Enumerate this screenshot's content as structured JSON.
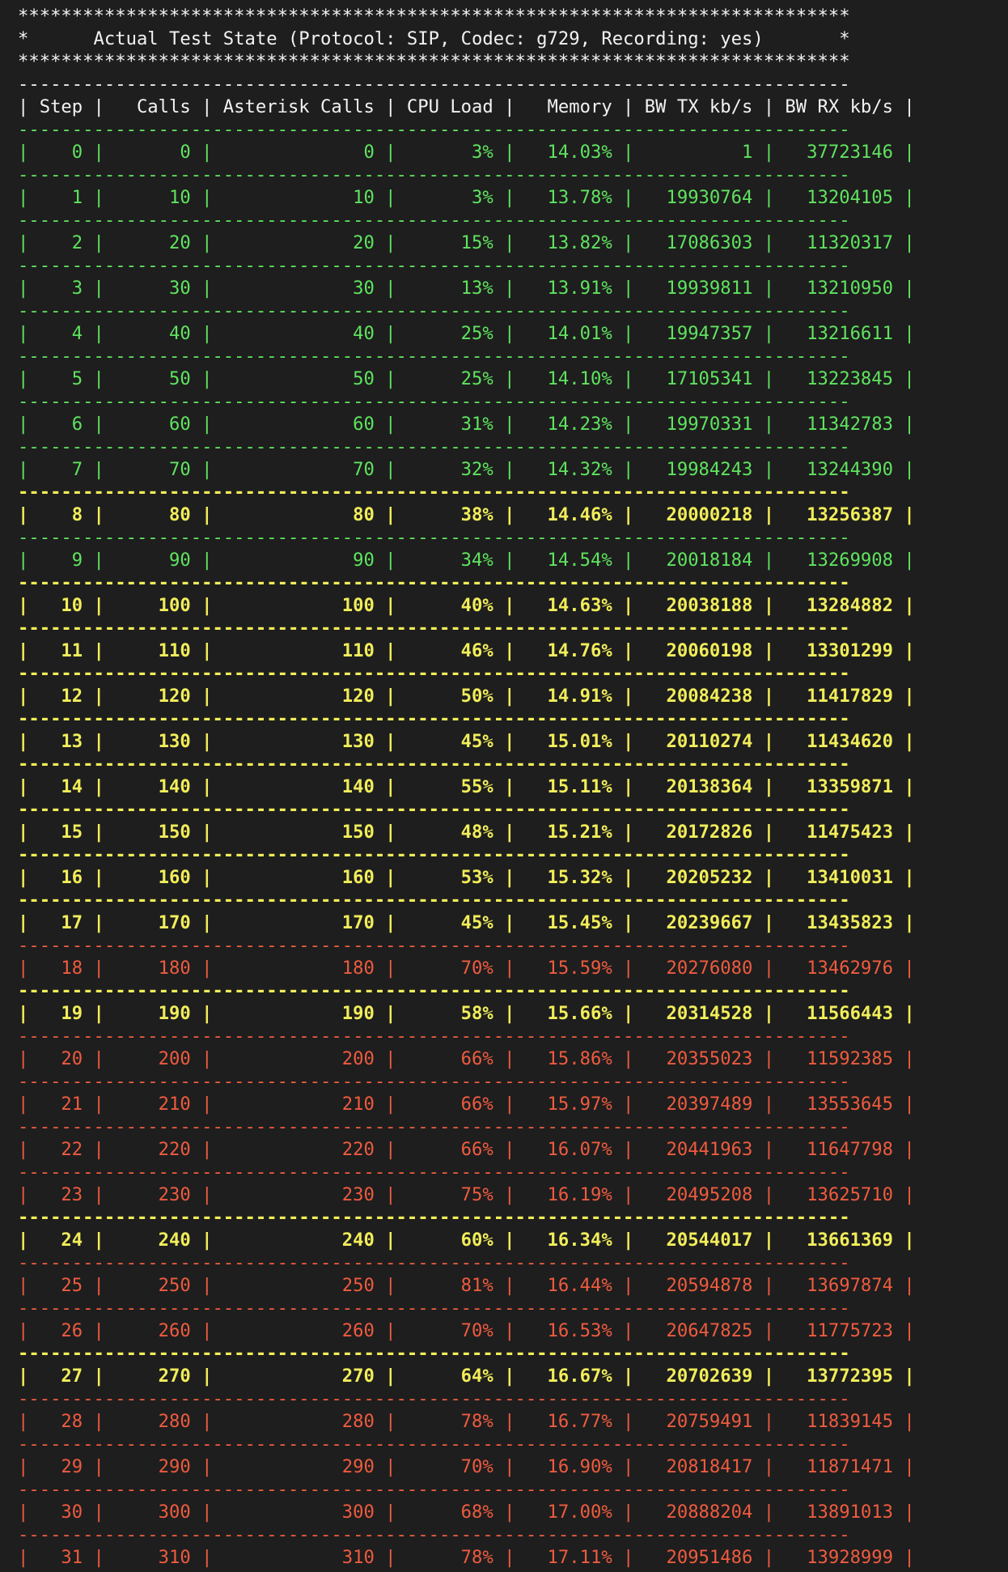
{
  "header": {
    "stars": "*****************************************************************************",
    "title": "Actual Test State (Protocol: SIP, Codec: g729, Recording: yes)"
  },
  "table": {
    "columns": [
      "Step",
      "Calls",
      "Asterisk Calls",
      "CPU Load",
      "Memory",
      "BW TX kb/s",
      "BW RX kb/s"
    ],
    "rows": [
      {
        "step": "0",
        "calls": "0",
        "asterisk": "0",
        "cpu": "3%",
        "mem": "14.03%",
        "tx": "1",
        "rx": "37723146",
        "color": "green"
      },
      {
        "step": "1",
        "calls": "10",
        "asterisk": "10",
        "cpu": "3%",
        "mem": "13.78%",
        "tx": "19930764",
        "rx": "13204105",
        "color": "green"
      },
      {
        "step": "2",
        "calls": "20",
        "asterisk": "20",
        "cpu": "15%",
        "mem": "13.82%",
        "tx": "17086303",
        "rx": "11320317",
        "color": "green"
      },
      {
        "step": "3",
        "calls": "30",
        "asterisk": "30",
        "cpu": "13%",
        "mem": "13.91%",
        "tx": "19939811",
        "rx": "13210950",
        "color": "green"
      },
      {
        "step": "4",
        "calls": "40",
        "asterisk": "40",
        "cpu": "25%",
        "mem": "14.01%",
        "tx": "19947357",
        "rx": "13216611",
        "color": "green"
      },
      {
        "step": "5",
        "calls": "50",
        "asterisk": "50",
        "cpu": "25%",
        "mem": "14.10%",
        "tx": "17105341",
        "rx": "13223845",
        "color": "green"
      },
      {
        "step": "6",
        "calls": "60",
        "asterisk": "60",
        "cpu": "31%",
        "mem": "14.23%",
        "tx": "19970331",
        "rx": "11342783",
        "color": "green"
      },
      {
        "step": "7",
        "calls": "70",
        "asterisk": "70",
        "cpu": "32%",
        "mem": "14.32%",
        "tx": "19984243",
        "rx": "13244390",
        "color": "green"
      },
      {
        "step": "8",
        "calls": "80",
        "asterisk": "80",
        "cpu": "38%",
        "mem": "14.46%",
        "tx": "20000218",
        "rx": "13256387",
        "color": "yellow"
      },
      {
        "step": "9",
        "calls": "90",
        "asterisk": "90",
        "cpu": "34%",
        "mem": "14.54%",
        "tx": "20018184",
        "rx": "13269908",
        "color": "green"
      },
      {
        "step": "10",
        "calls": "100",
        "asterisk": "100",
        "cpu": "40%",
        "mem": "14.63%",
        "tx": "20038188",
        "rx": "13284882",
        "color": "yellow"
      },
      {
        "step": "11",
        "calls": "110",
        "asterisk": "110",
        "cpu": "46%",
        "mem": "14.76%",
        "tx": "20060198",
        "rx": "13301299",
        "color": "yellow"
      },
      {
        "step": "12",
        "calls": "120",
        "asterisk": "120",
        "cpu": "50%",
        "mem": "14.91%",
        "tx": "20084238",
        "rx": "11417829",
        "color": "yellow"
      },
      {
        "step": "13",
        "calls": "130",
        "asterisk": "130",
        "cpu": "45%",
        "mem": "15.01%",
        "tx": "20110274",
        "rx": "11434620",
        "color": "yellow"
      },
      {
        "step": "14",
        "calls": "140",
        "asterisk": "140",
        "cpu": "55%",
        "mem": "15.11%",
        "tx": "20138364",
        "rx": "13359871",
        "color": "yellow"
      },
      {
        "step": "15",
        "calls": "150",
        "asterisk": "150",
        "cpu": "48%",
        "mem": "15.21%",
        "tx": "20172826",
        "rx": "11475423",
        "color": "yellow"
      },
      {
        "step": "16",
        "calls": "160",
        "asterisk": "160",
        "cpu": "53%",
        "mem": "15.32%",
        "tx": "20205232",
        "rx": "13410031",
        "color": "yellow"
      },
      {
        "step": "17",
        "calls": "170",
        "asterisk": "170",
        "cpu": "45%",
        "mem": "15.45%",
        "tx": "20239667",
        "rx": "13435823",
        "color": "yellow"
      },
      {
        "step": "18",
        "calls": "180",
        "asterisk": "180",
        "cpu": "70%",
        "mem": "15.59%",
        "tx": "20276080",
        "rx": "13462976",
        "color": "red"
      },
      {
        "step": "19",
        "calls": "190",
        "asterisk": "190",
        "cpu": "58%",
        "mem": "15.66%",
        "tx": "20314528",
        "rx": "11566443",
        "color": "yellow"
      },
      {
        "step": "20",
        "calls": "200",
        "asterisk": "200",
        "cpu": "66%",
        "mem": "15.86%",
        "tx": "20355023",
        "rx": "11592385",
        "color": "red"
      },
      {
        "step": "21",
        "calls": "210",
        "asterisk": "210",
        "cpu": "66%",
        "mem": "15.97%",
        "tx": "20397489",
        "rx": "13553645",
        "color": "red"
      },
      {
        "step": "22",
        "calls": "220",
        "asterisk": "220",
        "cpu": "66%",
        "mem": "16.07%",
        "tx": "20441963",
        "rx": "11647798",
        "color": "red"
      },
      {
        "step": "23",
        "calls": "230",
        "asterisk": "230",
        "cpu": "75%",
        "mem": "16.19%",
        "tx": "20495208",
        "rx": "13625710",
        "color": "red"
      },
      {
        "step": "24",
        "calls": "240",
        "asterisk": "240",
        "cpu": "60%",
        "mem": "16.34%",
        "tx": "20544017",
        "rx": "13661369",
        "color": "yellow"
      },
      {
        "step": "25",
        "calls": "250",
        "asterisk": "250",
        "cpu": "81%",
        "mem": "16.44%",
        "tx": "20594878",
        "rx": "13697874",
        "color": "red"
      },
      {
        "step": "26",
        "calls": "260",
        "asterisk": "260",
        "cpu": "70%",
        "mem": "16.53%",
        "tx": "20647825",
        "rx": "11775723",
        "color": "red"
      },
      {
        "step": "27",
        "calls": "270",
        "asterisk": "270",
        "cpu": "64%",
        "mem": "16.67%",
        "tx": "20702639",
        "rx": "13772395",
        "color": "yellow"
      },
      {
        "step": "28",
        "calls": "280",
        "asterisk": "280",
        "cpu": "78%",
        "mem": "16.77%",
        "tx": "20759491",
        "rx": "11839145",
        "color": "red"
      },
      {
        "step": "29",
        "calls": "290",
        "asterisk": "290",
        "cpu": "70%",
        "mem": "16.90%",
        "tx": "20818417",
        "rx": "11871471",
        "color": "red"
      },
      {
        "step": "30",
        "calls": "300",
        "asterisk": "300",
        "cpu": "68%",
        "mem": "17.00%",
        "tx": "20888204",
        "rx": "13891013",
        "color": "red"
      },
      {
        "step": "31",
        "calls": "310",
        "asterisk": "310",
        "cpu": "78%",
        "mem": "17.11%",
        "tx": "20951486",
        "rx": "13928999",
        "color": "red"
      }
    ]
  }
}
